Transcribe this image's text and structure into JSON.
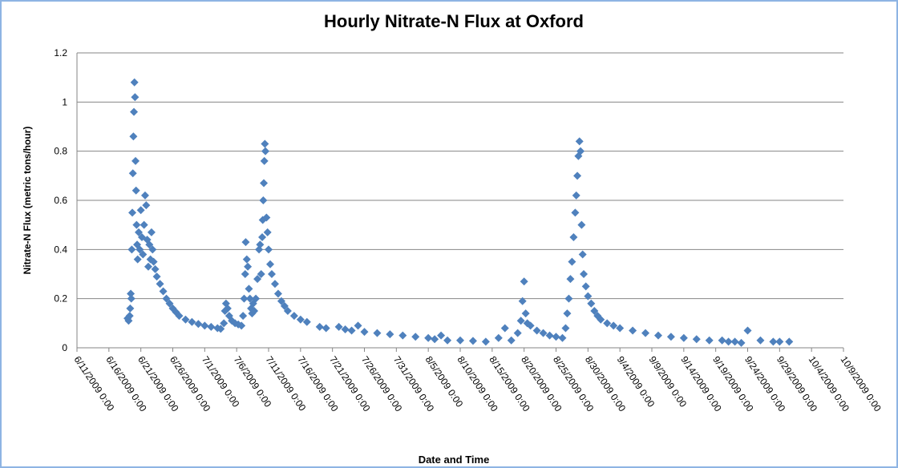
{
  "chart_data": {
    "type": "scatter",
    "title": "Hourly Nitrate-N Flux at Oxford",
    "x_label": "Date and Time",
    "y_label": "Nitrate-N  Flux (metric tons/hour)",
    "color": "#4f81bd",
    "marker": "diamond",
    "grid": true,
    "xlim": [
      "2009-06-11T00:00",
      "2009-10-09T00:00"
    ],
    "xticks": [
      {
        "value": "2009-06-11T00:00",
        "label": "6/11/2009 0:00"
      },
      {
        "value": "2009-06-16T00:00",
        "label": "6/16/2009 0:00"
      },
      {
        "value": "2009-06-21T00:00",
        "label": "6/21/2009 0:00"
      },
      {
        "value": "2009-06-26T00:00",
        "label": "6/26/2009 0:00"
      },
      {
        "value": "2009-07-01T00:00",
        "label": "7/1/2009 0:00"
      },
      {
        "value": "2009-07-06T00:00",
        "label": "7/6/2009 0:00"
      },
      {
        "value": "2009-07-11T00:00",
        "label": "7/11/2009 0:00"
      },
      {
        "value": "2009-07-16T00:00",
        "label": "7/16/2009 0:00"
      },
      {
        "value": "2009-07-21T00:00",
        "label": "7/21/2009 0:00"
      },
      {
        "value": "2009-07-26T00:00",
        "label": "7/26/2009 0:00"
      },
      {
        "value": "2009-07-31T00:00",
        "label": "7/31/2009 0:00"
      },
      {
        "value": "2009-08-05T00:00",
        "label": "8/5/2009 0:00"
      },
      {
        "value": "2009-08-10T00:00",
        "label": "8/10/2009 0:00"
      },
      {
        "value": "2009-08-15T00:00",
        "label": "8/15/2009 0:00"
      },
      {
        "value": "2009-08-20T00:00",
        "label": "8/20/2009 0:00"
      },
      {
        "value": "2009-08-25T00:00",
        "label": "8/25/2009 0:00"
      },
      {
        "value": "2009-08-30T00:00",
        "label": "8/30/2009 0:00"
      },
      {
        "value": "2009-09-04T00:00",
        "label": "9/4/2009 0:00"
      },
      {
        "value": "2009-09-09T00:00",
        "label": "9/9/2009 0:00"
      },
      {
        "value": "2009-09-14T00:00",
        "label": "9/14/2009 0:00"
      },
      {
        "value": "2009-09-19T00:00",
        "label": "9/19/2009 0:00"
      },
      {
        "value": "2009-09-24T00:00",
        "label": "9/24/2009 0:00"
      },
      {
        "value": "2009-09-29T00:00",
        "label": "9/29/2009 0:00"
      },
      {
        "value": "2009-10-04T00:00",
        "label": "10/4/2009 0:00"
      },
      {
        "value": "2009-10-09T00:00",
        "label": "10/9/2009 0:00"
      }
    ],
    "ylim": [
      0,
      1.2
    ],
    "yticks": [
      0,
      0.2,
      0.4,
      0.6,
      0.8,
      1,
      1.2
    ],
    "x": [
      "2009-06-18T22:00",
      "2009-06-19T02:00",
      "2009-06-19T06:00",
      "2009-06-19T08:00",
      "2009-06-19T10:00",
      "2009-06-19T12:00",
      "2009-06-19T14:00",
      "2009-06-19T16:00",
      "2009-06-19T18:00",
      "2009-06-19T20:00",
      "2009-06-19T22:00",
      "2009-06-20T00:00",
      "2009-06-20T02:00",
      "2009-06-20T04:00",
      "2009-06-20T06:00",
      "2009-06-20T08:00",
      "2009-06-20T10:00",
      "2009-06-20T12:00",
      "2009-06-20T16:00",
      "2009-06-20T20:00",
      "2009-06-21T00:00",
      "2009-06-21T04:00",
      "2009-06-21T08:00",
      "2009-06-21T12:00",
      "2009-06-21T16:00",
      "2009-06-21T20:00",
      "2009-06-22T00:00",
      "2009-06-22T04:00",
      "2009-06-22T08:00",
      "2009-06-22T12:00",
      "2009-06-22T16:00",
      "2009-06-22T20:00",
      "2009-06-23T00:00",
      "2009-06-23T06:00",
      "2009-06-23T12:00",
      "2009-06-24T00:00",
      "2009-06-24T12:00",
      "2009-06-25T00:00",
      "2009-06-25T12:00",
      "2009-06-26T00:00",
      "2009-06-26T12:00",
      "2009-06-27T00:00",
      "2009-06-28T00:00",
      "2009-06-29T00:00",
      "2009-06-30T00:00",
      "2009-07-01T00:00",
      "2009-07-02T00:00",
      "2009-07-03T00:00",
      "2009-07-03T12:00",
      "2009-07-04T00:00",
      "2009-07-04T04:00",
      "2009-07-04T08:00",
      "2009-07-04T14:00",
      "2009-07-04T20:00",
      "2009-07-05T06:00",
      "2009-07-05T18:00",
      "2009-07-06T06:00",
      "2009-07-06T18:00",
      "2009-07-07T00:00",
      "2009-07-07T04:00",
      "2009-07-07T08:00",
      "2009-07-07T10:00",
      "2009-07-07T14:00",
      "2009-07-07T18:00",
      "2009-07-07T22:00",
      "2009-07-08T02:00",
      "2009-07-08T06:00",
      "2009-07-08T10:00",
      "2009-07-08T14:00",
      "2009-07-08T18:00",
      "2009-07-09T00:00",
      "2009-07-09T06:00",
      "2009-07-09T12:00",
      "2009-07-09T16:00",
      "2009-07-09T20:00",
      "2009-07-10T00:00",
      "2009-07-10T02:00",
      "2009-07-10T04:00",
      "2009-07-10T06:00",
      "2009-07-10T08:00",
      "2009-07-10T10:00",
      "2009-07-10T12:00",
      "2009-07-10T16:00",
      "2009-07-10T20:00",
      "2009-07-11T00:00",
      "2009-07-11T06:00",
      "2009-07-11T12:00",
      "2009-07-12T00:00",
      "2009-07-12T12:00",
      "2009-07-13T00:00",
      "2009-07-13T12:00",
      "2009-07-14T00:00",
      "2009-07-15T00:00",
      "2009-07-16T00:00",
      "2009-07-17T00:00",
      "2009-07-19T00:00",
      "2009-07-20T00:00",
      "2009-07-22T00:00",
      "2009-07-23T00:00",
      "2009-07-24T00:00",
      "2009-07-25T00:00",
      "2009-07-26T00:00",
      "2009-07-28T00:00",
      "2009-07-30T00:00",
      "2009-08-01T00:00",
      "2009-08-03T00:00",
      "2009-08-05T00:00",
      "2009-08-06T00:00",
      "2009-08-07T00:00",
      "2009-08-08T00:00",
      "2009-08-10T00:00",
      "2009-08-12T00:00",
      "2009-08-14T00:00",
      "2009-08-16T00:00",
      "2009-08-17T00:00",
      "2009-08-18T00:00",
      "2009-08-19T00:00",
      "2009-08-19T12:00",
      "2009-08-19T18:00",
      "2009-08-20T00:00",
      "2009-08-20T06:00",
      "2009-08-20T12:00",
      "2009-08-21T00:00",
      "2009-08-22T00:00",
      "2009-08-23T00:00",
      "2009-08-24T00:00",
      "2009-08-25T00:00",
      "2009-08-26T00:00",
      "2009-08-26T12:00",
      "2009-08-26T18:00",
      "2009-08-27T00:00",
      "2009-08-27T06:00",
      "2009-08-27T12:00",
      "2009-08-27T18:00",
      "2009-08-28T00:00",
      "2009-08-28T04:00",
      "2009-08-28T08:00",
      "2009-08-28T12:00",
      "2009-08-28T16:00",
      "2009-08-28T20:00",
      "2009-08-29T00:00",
      "2009-08-29T04:00",
      "2009-08-29T08:00",
      "2009-08-29T16:00",
      "2009-08-30T00:00",
      "2009-08-30T12:00",
      "2009-08-31T00:00",
      "2009-08-31T12:00",
      "2009-09-01T00:00",
      "2009-09-02T00:00",
      "2009-09-03T00:00",
      "2009-09-04T00:00",
      "2009-09-06T00:00",
      "2009-09-08T00:00",
      "2009-09-10T00:00",
      "2009-09-12T00:00",
      "2009-09-14T00:00",
      "2009-09-16T00:00",
      "2009-09-18T00:00",
      "2009-09-20T00:00",
      "2009-09-21T00:00",
      "2009-09-22T00:00",
      "2009-09-23T00:00",
      "2009-09-24T00:00",
      "2009-09-26T00:00",
      "2009-09-28T00:00",
      "2009-09-29T00:00",
      "2009-09-30T12:00"
    ],
    "values": [
      0.12,
      0.11,
      0.13,
      0.16,
      0.22,
      0.2,
      0.4,
      0.55,
      0.71,
      0.86,
      0.96,
      1.08,
      1.02,
      0.76,
      0.64,
      0.5,
      0.42,
      0.36,
      0.47,
      0.4,
      0.56,
      0.45,
      0.38,
      0.5,
      0.62,
      0.58,
      0.44,
      0.33,
      0.42,
      0.36,
      0.47,
      0.4,
      0.35,
      0.32,
      0.29,
      0.26,
      0.23,
      0.2,
      0.18,
      0.16,
      0.145,
      0.13,
      0.115,
      0.105,
      0.097,
      0.09,
      0.085,
      0.08,
      0.077,
      0.1,
      0.15,
      0.18,
      0.16,
      0.13,
      0.11,
      0.1,
      0.095,
      0.09,
      0.13,
      0.2,
      0.3,
      0.43,
      0.36,
      0.33,
      0.24,
      0.2,
      0.16,
      0.14,
      0.18,
      0.15,
      0.2,
      0.28,
      0.4,
      0.42,
      0.3,
      0.45,
      0.52,
      0.6,
      0.67,
      0.76,
      0.83,
      0.8,
      0.53,
      0.47,
      0.4,
      0.34,
      0.3,
      0.26,
      0.22,
      0.19,
      0.17,
      0.15,
      0.13,
      0.115,
      0.105,
      0.085,
      0.08,
      0.085,
      0.075,
      0.07,
      0.09,
      0.065,
      0.06,
      0.055,
      0.05,
      0.045,
      0.04,
      0.035,
      0.05,
      0.03,
      0.03,
      0.028,
      0.025,
      0.04,
      0.08,
      0.03,
      0.06,
      0.11,
      0.19,
      0.27,
      0.14,
      0.1,
      0.09,
      0.07,
      0.06,
      0.05,
      0.045,
      0.04,
      0.08,
      0.14,
      0.2,
      0.28,
      0.35,
      0.45,
      0.55,
      0.62,
      0.7,
      0.78,
      0.84,
      0.8,
      0.5,
      0.38,
      0.3,
      0.25,
      0.21,
      0.18,
      0.15,
      0.13,
      0.115,
      0.1,
      0.09,
      0.08,
      0.07,
      0.06,
      0.05,
      0.045,
      0.04,
      0.035,
      0.03,
      0.03,
      0.025,
      0.025,
      0.02,
      0.07,
      0.03,
      0.025,
      0.025,
      0.025
    ]
  }
}
